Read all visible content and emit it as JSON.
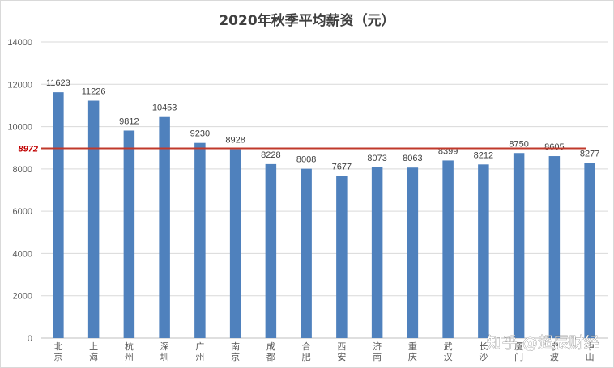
{
  "chart_data": {
    "type": "bar",
    "title": "2020年秋季平均薪资（元）",
    "categories": [
      "北京",
      "上海",
      "杭州",
      "深圳",
      "广州",
      "南京",
      "成都",
      "合肥",
      "西安",
      "济南",
      "重庆",
      "武汉",
      "长沙",
      "厦门",
      "宁波",
      "中山"
    ],
    "values": [
      11623,
      11226,
      9812,
      10453,
      9230,
      8928,
      8228,
      8008,
      7677,
      8073,
      8063,
      8399,
      8212,
      8750,
      8605,
      8277
    ],
    "ylim": [
      0,
      14000
    ],
    "yticks": [
      0,
      2000,
      4000,
      6000,
      8000,
      10000,
      12000,
      14000
    ],
    "grid": true,
    "data_labels": true,
    "reference_line": {
      "value": 8972,
      "label": "8972",
      "color": "#c0392b"
    },
    "bar_color": "#4f81bd"
  },
  "watermark": {
    "text": "知乎 @超辰财经",
    "icon": "zhihu-logo"
  }
}
